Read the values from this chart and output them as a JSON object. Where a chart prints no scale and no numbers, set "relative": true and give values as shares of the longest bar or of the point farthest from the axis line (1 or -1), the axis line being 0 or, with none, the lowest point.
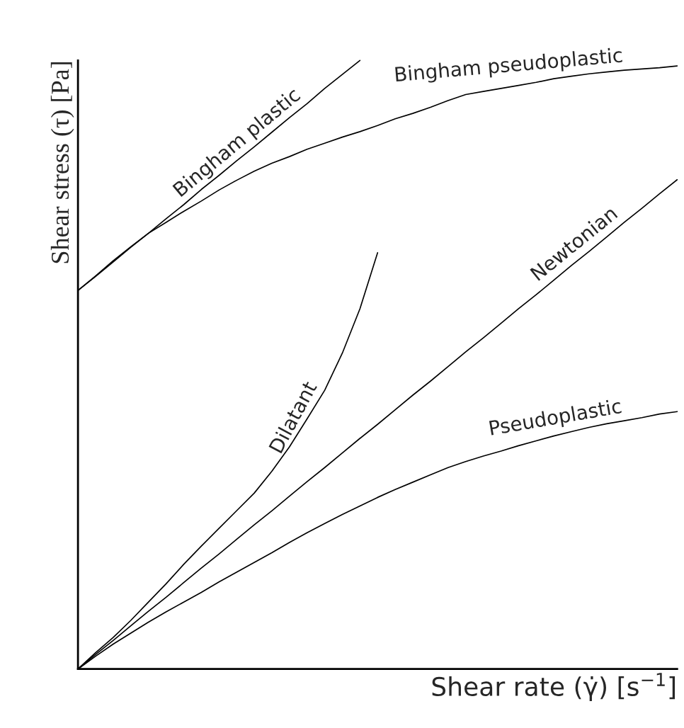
{
  "chart_data": {
    "type": "line",
    "relative": true,
    "xlabel": "Shear rate (γ̇) [s$^{−1}$]",
    "ylabel": "Shear stress (τ) [Pa]",
    "categories": [
      null,
      null,
      null,
      null,
      null,
      null,
      null,
      null,
      null,
      null,
      null,
      null,
      null,
      null,
      null,
      null,
      null,
      null,
      null,
      null,
      null,
      null,
      null,
      null,
      null,
      null,
      null,
      null,
      null,
      null,
      null,
      null,
      null,
      null,
      null
    ],
    "series": [
      {
        "name": "Bingham plastic",
        "color": "#000000",
        "values": [
          0.622,
          0.645,
          0.669,
          0.693,
          0.716,
          0.74,
          0.763,
          0.788,
          0.811,
          0.835,
          0.858,
          0.882,
          0.906,
          0.929,
          0.954,
          0.977,
          1.0,
          null,
          null,
          null,
          null,
          null,
          null,
          null,
          null,
          null,
          null,
          null,
          null,
          null,
          null,
          null,
          null,
          null,
          null
        ]
      },
      {
        "name": "Bingham pseudoplastic",
        "color": "#000000",
        "values": [
          0.622,
          0.646,
          0.671,
          0.694,
          0.716,
          0.734,
          0.752,
          0.769,
          0.787,
          0.803,
          0.818,
          0.831,
          0.842,
          0.854,
          0.864,
          0.874,
          0.883,
          0.893,
          0.904,
          0.913,
          0.923,
          0.934,
          0.944,
          0.949,
          0.954,
          0.959,
          0.964,
          0.97,
          0.974,
          0.978,
          0.981,
          0.984,
          0.986,
          0.988,
          0.991
        ]
      },
      {
        "name": "Dilatant",
        "color": "#000000",
        "values": [
          0,
          0.027,
          0.052,
          0.08,
          0.11,
          0.14,
          0.172,
          0.202,
          0.231,
          0.26,
          0.289,
          0.325,
          0.365,
          0.411,
          0.458,
          0.519,
          0.592,
          0.684,
          null,
          null,
          null,
          null,
          null,
          null,
          null,
          null,
          null,
          null,
          null,
          null,
          null,
          null,
          null,
          null,
          null
        ]
      },
      {
        "name": "Newtonian",
        "color": "#000000",
        "values": [
          0,
          0.024,
          0.047,
          0.071,
          0.095,
          0.118,
          0.142,
          0.166,
          0.189,
          0.213,
          0.237,
          0.26,
          0.284,
          0.308,
          0.331,
          0.355,
          0.379,
          0.402,
          0.426,
          0.45,
          0.473,
          0.497,
          0.521,
          0.544,
          0.568,
          0.592,
          0.615,
          0.639,
          0.663,
          0.686,
          0.71,
          0.734,
          0.757,
          0.781,
          0.804
        ]
      },
      {
        "name": "Pseudoplastic",
        "color": "#000000",
        "values": [
          0,
          0.021,
          0.041,
          0.059,
          0.077,
          0.094,
          0.11,
          0.126,
          0.143,
          0.159,
          0.175,
          0.191,
          0.208,
          0.224,
          0.239,
          0.254,
          0.268,
          0.282,
          0.295,
          0.307,
          0.319,
          0.331,
          0.341,
          0.35,
          0.358,
          0.367,
          0.375,
          0.383,
          0.39,
          0.397,
          0.403,
          0.408,
          0.413,
          0.419,
          0.423
        ]
      }
    ]
  }
}
